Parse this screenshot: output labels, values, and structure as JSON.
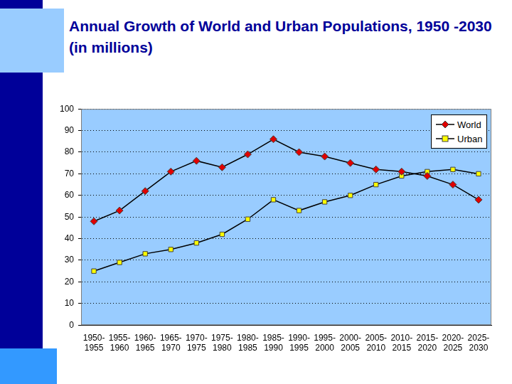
{
  "chart_data": {
    "type": "line",
    "title": "Annual Growth of World and Urban Populations, 1950 -2030 (in millions)",
    "categories": [
      "1950-1955",
      "1955-1960",
      "1960-1965",
      "1965-1970",
      "1970-1975",
      "1975-1980",
      "1980-1985",
      "1985-1990",
      "1990-1995",
      "1995-2000",
      "2000-2005",
      "2005-2010",
      "2010-2015",
      "2015-2020",
      "2020-2025",
      "2025-2030"
    ],
    "series": [
      {
        "name": "World",
        "color": "#e00000",
        "marker": "diamond",
        "values": [
          48,
          53,
          62,
          71,
          76,
          73,
          79,
          86,
          80,
          78,
          75,
          72,
          71,
          69,
          65,
          58
        ]
      },
      {
        "name": "Urban",
        "color": "#ffff00",
        "marker": "square",
        "values": [
          25,
          29,
          33,
          35,
          38,
          42,
          49,
          58,
          53,
          57,
          60,
          65,
          69,
          71,
          72,
          70
        ]
      }
    ],
    "ylim": [
      0,
      100
    ],
    "yticks": [
      0,
      10,
      20,
      30,
      40,
      50,
      60,
      70,
      80,
      90,
      100
    ],
    "grid": true,
    "legend": "upper right"
  }
}
